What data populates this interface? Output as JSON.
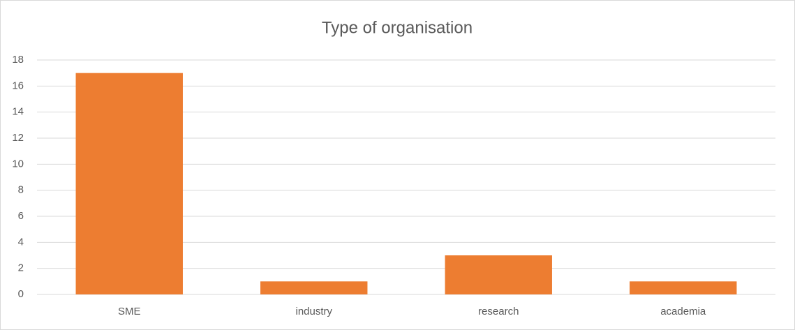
{
  "chart_data": {
    "type": "bar",
    "title": "Type of organisation",
    "categories": [
      "SME",
      "industry",
      "research",
      "academia"
    ],
    "values": [
      17,
      1,
      3,
      1
    ],
    "color": "#ed7d31",
    "ylim": [
      0,
      18
    ],
    "yticks": [
      0,
      2,
      4,
      6,
      8,
      10,
      12,
      14,
      16,
      18
    ],
    "grid": true
  }
}
